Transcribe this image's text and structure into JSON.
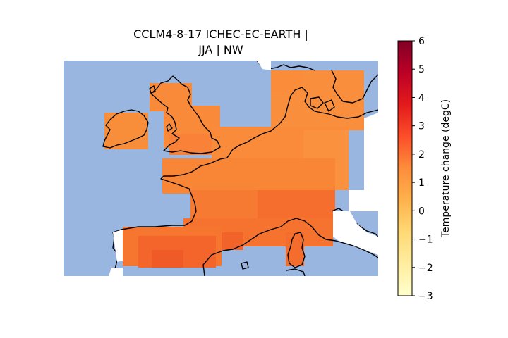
{
  "title": {
    "line1": "CCLM4-8-17 ICHEC-EC-EARTH |",
    "line2": "JJA | NW"
  },
  "colors": {
    "sea": "#98b6e0",
    "land_outline": "#000000",
    "colormap": [
      "#ffffcc",
      "#ffeda0",
      "#fed976",
      "#feb24c",
      "#fd8d3c",
      "#fc4e2a",
      "#e31a1c",
      "#bd0026",
      "#800026"
    ]
  },
  "colorbar": {
    "label": "Temperature change (degC)",
    "min": -3,
    "max": 6,
    "ticks": [
      "6",
      "5",
      "4",
      "3",
      "2",
      "1",
      "0",
      "−1",
      "−2",
      "−3"
    ]
  },
  "chart_data": {
    "type": "heatmap",
    "title": "CCLM4-8-17 ICHEC-EC-EARTH | JJA | NW",
    "value_label": "Temperature change (degC)",
    "value_range": [
      -3,
      6
    ],
    "region_cells_approx": [
      {
        "region": "Ireland",
        "value": 1.5
      },
      {
        "region": "Great Britain",
        "value": 1.6
      },
      {
        "region": "Southern England",
        "value": 1.8
      },
      {
        "region": "Southern Scandinavia / Denmark",
        "value": 1.7
      },
      {
        "region": "Low Countries",
        "value": 1.8
      },
      {
        "region": "Germany",
        "value": 1.9
      },
      {
        "region": "Northern France",
        "value": 2.0
      },
      {
        "region": "Central France",
        "value": 2.3
      },
      {
        "region": "Southern France",
        "value": 2.6
      },
      {
        "region": "Northern Spain",
        "value": 2.9
      },
      {
        "region": "Corsica",
        "value": 2.6
      }
    ]
  }
}
